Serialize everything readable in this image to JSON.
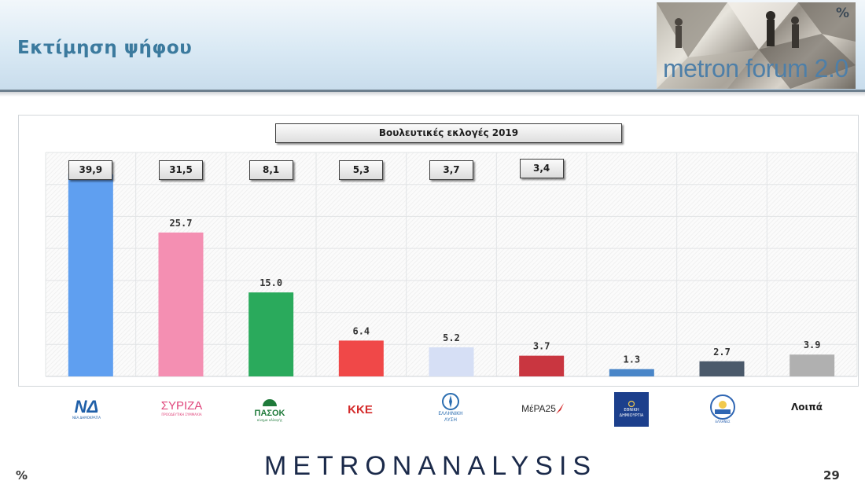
{
  "header": {
    "title": "Εκτίμηση ψήφου",
    "logo_text": "metron forum 2.0",
    "logo_pct": "%"
  },
  "chart_data": {
    "type": "bar",
    "title": "Βουλευτικές εκλογές 2019",
    "categories": [
      "ΝΔ",
      "ΣΥΡΙΖΑ",
      "ΠΑΣΟΚ",
      "ΚΚΕ",
      "ΕΛΛΗΝΙΚΗ ΛΥΣΗ",
      "ΜέΡΑ25",
      "ΕΘΝΙΚΗ ΔΗΜΙΟΥΡΓΙΑ",
      "ΕΛΛΗΝΕΣ",
      "Λοιπά"
    ],
    "values": [
      36.1,
      25.7,
      15.0,
      6.4,
      5.2,
      3.7,
      1.3,
      2.7,
      3.9
    ],
    "value_labels": [
      "36.1",
      "25.7",
      "15.0",
      "6.4",
      "5.2",
      "3.7",
      "1.3",
      "2.7",
      "3.9"
    ],
    "previous_election_2019": [
      "39,9",
      "31,5",
      "8,1",
      "5,3",
      "3,7",
      "3,4"
    ],
    "colors": [
      "#5f9ff0",
      "#f48fb2",
      "#2aaa5c",
      "#f04848",
      "#d6dff5",
      "#c93640",
      "#4a86c8",
      "#4b5a6b",
      "#b0b0b0"
    ],
    "ylim": [
      0,
      40
    ],
    "grid": true,
    "legend": "none"
  },
  "parties": {
    "nd": {
      "main": "ΝΔ",
      "sub": "ΝΕΑ ΔΗΜΟΚΡΑΤΙΑ",
      "color": "#1f5fa8"
    },
    "syriza": {
      "main": "ΣΥΡΙΖΑ",
      "sub": "ΠΡΟΟΔΕΥΤΙΚΗ ΣΥΜΜΑΧΙΑ",
      "color": "#e0457b"
    },
    "pasok": {
      "main": "ΠΑΣΟΚ",
      "sub": "κίνημα αλλαγής",
      "color": "#1f7a3a"
    },
    "kke": {
      "main": "ΚΚΕ",
      "color": "#d42b2b"
    },
    "elliniki_lysi": {
      "main": "ΕΛΛΗΝΙΚΗ",
      "sub": "ΛΥΣΗ",
      "color": "#2a6db0"
    },
    "mera25": {
      "main": "ΜέΡΑ25",
      "color": "#2a2a2a"
    },
    "ethniki_dimiourgia": {
      "main": "ΕΘΝΙΚΗ",
      "sub": "ΔΗΜΙΟΥΡΓΙΑ",
      "color": "#1c3f8c"
    },
    "ellines": {
      "main": "ΕΛΛΗΝΕΣ",
      "color": "#2f66b3"
    },
    "loipa": {
      "main": "Λοιπά"
    }
  },
  "footer": {
    "brand": "METRONANALYSIS",
    "pct": "%",
    "page_number": "29"
  }
}
